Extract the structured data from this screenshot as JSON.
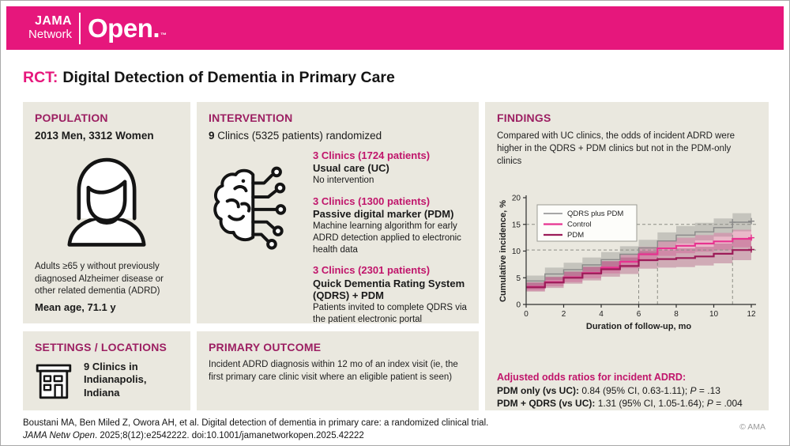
{
  "brand": {
    "jama": "JAMA",
    "network": "Network",
    "open": "Open.",
    "tm": "™"
  },
  "title": {
    "tag": "RCT:",
    "text": "Digital Detection of Dementia in Primary Care"
  },
  "population": {
    "heading": "POPULATION",
    "count": "2013 Men, 3312 Women",
    "icon": "person-icon",
    "description": "Adults ≥65 y without previously diagnosed Alzheimer disease or other related dementia (ADRD)",
    "mean_age": "Mean age, 71.1 y"
  },
  "intervention": {
    "heading": "INTERVENTION",
    "randomized_count": "9",
    "randomized_rest": " Clinics (5325 patients) randomized",
    "icon": "brain-circuit-icon",
    "arms": [
      {
        "clinics": "3 Clinics (1724 patients)",
        "name": "Usual care (UC)",
        "description": "No intervention"
      },
      {
        "clinics": "3 Clinics (1300 patients)",
        "name": "Passive digital marker (PDM)",
        "description": "Machine learning algorithm for early ADRD detection applied to electronic health data"
      },
      {
        "clinics": "3 Clinics (2301 patients)",
        "name": "Quick Dementia Rating System (QDRS) + PDM",
        "description": "Patients invited to complete QDRS via the patient electronic portal"
      }
    ]
  },
  "settings": {
    "heading": "SETTINGS / LOCATIONS",
    "icon": "clinic-building-icon",
    "text": "9 Clinics in Indianapolis, Indiana"
  },
  "outcome": {
    "heading": "PRIMARY OUTCOME",
    "text": "Incident ADRD diagnosis within 12 mo of an index visit (ie, the first primary care clinic visit where an eligible patient is seen)"
  },
  "findings": {
    "heading": "FINDINGS",
    "summary": "Compared with UC clinics, the odds of incident ADRD were higher in the QDRS + PDM clinics but not in the PDM-only clinics",
    "odds": {
      "heading": "Adjusted odds ratios for incident ADRD:",
      "rows": [
        {
          "label": "PDM only (vs UC):",
          "value": " 0.84 (95% CI, 0.63-1.11); ",
          "p_label": "P",
          "p_value": " = .13"
        },
        {
          "label": "PDM + QDRS (vs UC):",
          "value": " 1.31 (95% CI, 1.05-1.64); ",
          "p_label": "P",
          "p_value": " = .004"
        }
      ]
    }
  },
  "chart_data": {
    "type": "line",
    "subtype": "kaplan-meier-step-with-ci-bands",
    "title": "",
    "xlabel": "Duration of follow-up, mo",
    "ylabel": "Cumulative incidence, %",
    "xlim": [
      0,
      12
    ],
    "ylim": [
      0,
      20
    ],
    "xticks": [
      0,
      2,
      4,
      6,
      8,
      10,
      12
    ],
    "yticks": [
      0,
      5,
      10,
      15,
      20
    ],
    "grid": false,
    "legend_position": "top-left",
    "months": [
      0,
      1,
      2,
      3,
      4,
      5,
      6,
      7,
      8,
      9,
      10,
      11,
      12
    ],
    "series": [
      {
        "name": "QDRS plus PDM",
        "color": "#8a8a8a",
        "band_color": "rgba(128,128,126,0.35)",
        "line_width": 1.4,
        "values": [
          4.4,
          5.7,
          6.5,
          7.4,
          8.4,
          9.4,
          10.6,
          11.9,
          13.0,
          13.6,
          14.4,
          15.4,
          15.6
        ],
        "lower": [
          3.4,
          4.6,
          5.3,
          6.1,
          7.1,
          8.0,
          9.2,
          10.4,
          11.4,
          12.0,
          12.7,
          13.7,
          13.8
        ],
        "upper": [
          5.4,
          6.9,
          7.8,
          8.8,
          9.8,
          10.9,
          12.1,
          13.5,
          14.7,
          15.3,
          16.1,
          17.1,
          17.4
        ],
        "censor_marks": [
          [
            11,
            15.4
          ],
          [
            12,
            15.6
          ]
        ]
      },
      {
        "name": "Control",
        "color": "#e73390",
        "band_color": "rgba(233,62,143,0.28)",
        "line_width": 2.2,
        "values": [
          3.3,
          4.2,
          5.1,
          5.9,
          6.9,
          8.0,
          9.4,
          10.5,
          11.0,
          11.4,
          11.8,
          12.3,
          12.5
        ],
        "lower": [
          2.6,
          3.4,
          4.2,
          4.9,
          5.8,
          6.8,
          8.1,
          9.1,
          9.6,
          9.9,
          10.2,
          10.7,
          10.8
        ],
        "upper": [
          4.1,
          5.1,
          6.1,
          7.0,
          8.1,
          9.3,
          10.8,
          12.0,
          12.5,
          13.0,
          13.4,
          14.0,
          14.2
        ],
        "censor_marks": [
          [
            12,
            12.5
          ]
        ]
      },
      {
        "name": "PDM",
        "color": "#9c1c58",
        "band_color": "rgba(150,30,88,0.30)",
        "line_width": 2.2,
        "values": [
          3.2,
          4.1,
          5.0,
          5.8,
          6.6,
          7.2,
          8.3,
          8.5,
          8.7,
          9.0,
          9.5,
          10.2,
          10.3
        ],
        "lower": [
          2.4,
          3.1,
          3.9,
          4.5,
          5.2,
          5.7,
          6.7,
          6.9,
          7.0,
          7.3,
          7.7,
          8.3,
          8.4
        ],
        "upper": [
          4.1,
          5.2,
          6.2,
          7.1,
          8.1,
          8.8,
          10.0,
          10.2,
          10.5,
          10.8,
          11.4,
          12.2,
          12.3
        ],
        "censor_marks": [
          [
            12,
            10.3
          ]
        ]
      }
    ],
    "reference_lines": {
      "horizontal": [
        15,
        10.2
      ],
      "vertical": [
        {
          "x": 6,
          "to": 10.2
        },
        {
          "x": 7,
          "to": 10.2
        },
        {
          "x": 11,
          "to": 15.4
        }
      ]
    }
  },
  "citation": {
    "line1": "Boustani MA, Ben Miled Z, Owora AH, et al. Digital detection of dementia in primary care: a randomized clinical trial.",
    "journal": "JAMA Netw Open",
    "line2_rest": ". 2025;8(12):e2542222. doi:10.1001/jamanetworkopen.2025.42222",
    "copyright": "© AMA"
  },
  "colors": {
    "brand_magenta": "#e6177c",
    "section_heading": "#9c1f62",
    "accent_magenta": "#c0156b",
    "panel_background": "#eae8df"
  }
}
